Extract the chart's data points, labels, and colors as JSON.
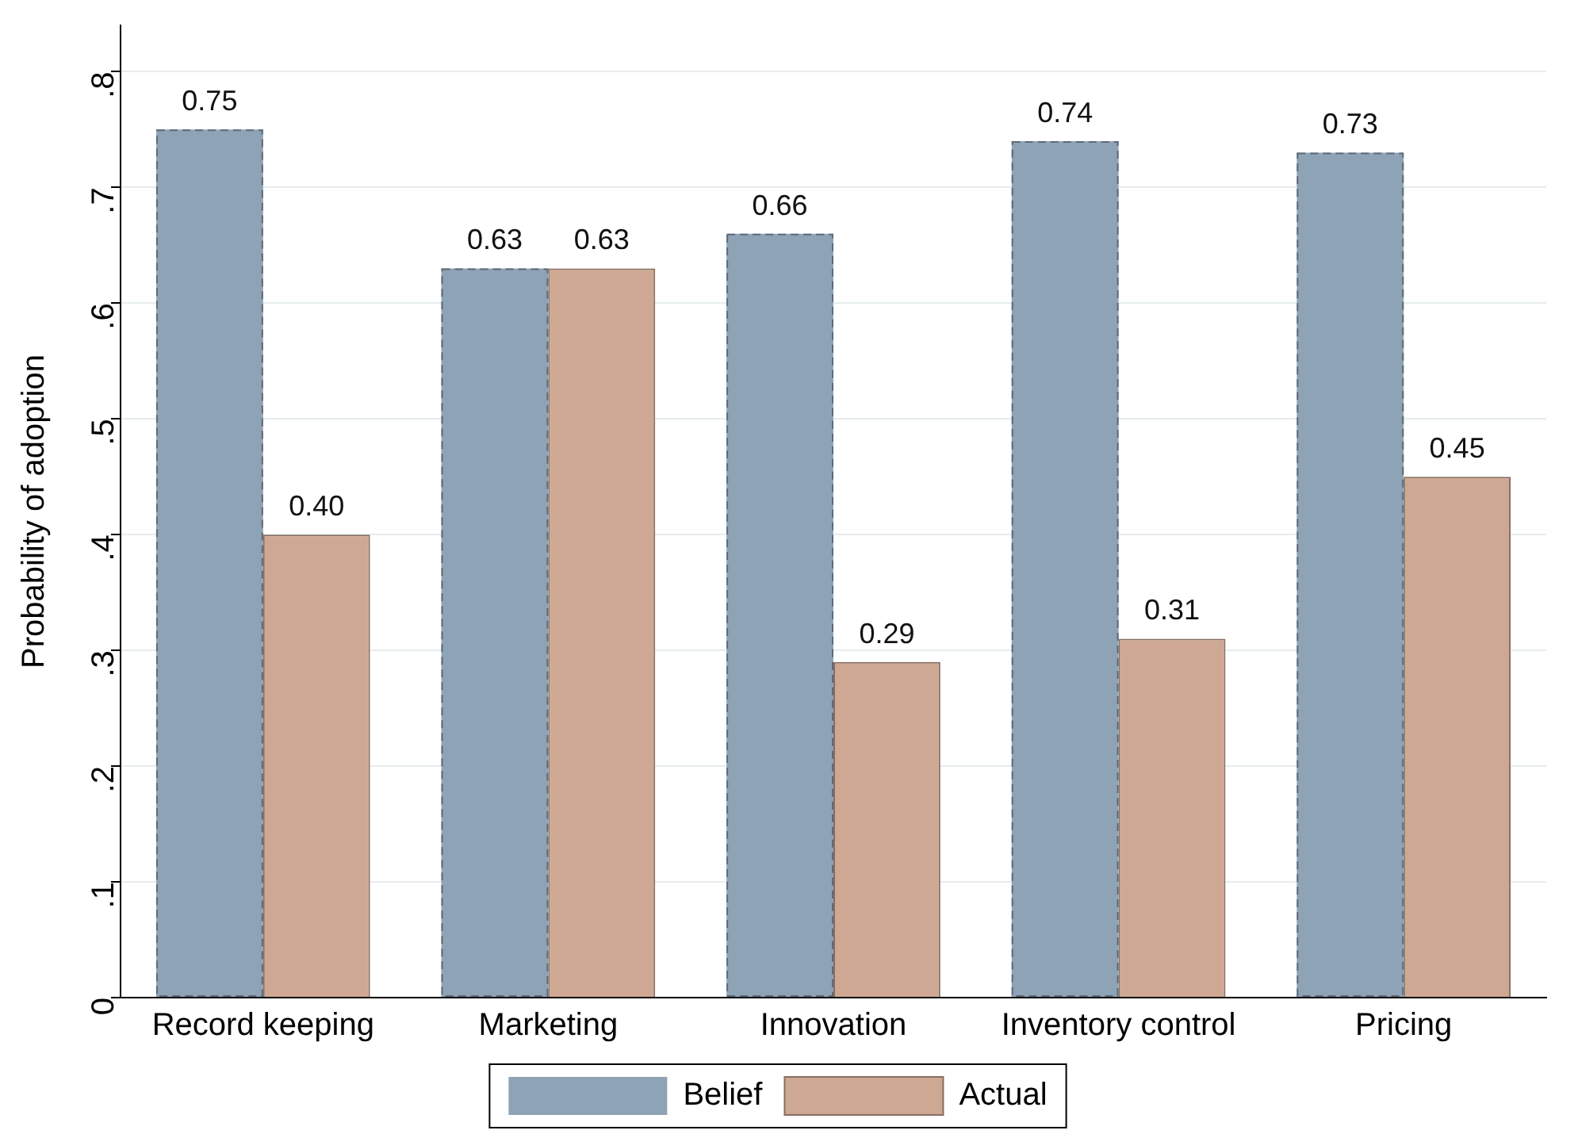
{
  "chart_data": {
    "type": "bar",
    "ylabel": "Probability of adoption",
    "categories": [
      "Record keeping",
      "Marketing",
      "Innovation",
      "Inventory control",
      "Pricing"
    ],
    "series": [
      {
        "name": "Belief",
        "color": "#8fa3b7",
        "line_style": "dashed",
        "values": [
          0.75,
          0.63,
          0.66,
          0.74,
          0.73
        ],
        "value_labels": [
          "0.75",
          "0.63",
          "0.66",
          "0.74",
          "0.73"
        ]
      },
      {
        "name": "Actual",
        "color": "#cfa893",
        "values": [
          0.4,
          0.63,
          0.29,
          0.31,
          0.45
        ],
        "value_labels": [
          "0.40",
          "0.63",
          "0.29",
          "0.31",
          "0.45"
        ]
      }
    ],
    "ylim": [
      0,
      0.84
    ],
    "yticks": [
      0,
      {
        "value": 0.1,
        "label": ".1"
      },
      {
        "value": 0.2,
        "label": ".2"
      },
      {
        "value": 0.3,
        "label": ".3"
      },
      {
        "value": 0.4,
        "label": ".4"
      },
      {
        "value": 0.5,
        "label": ".5"
      },
      {
        "value": 0.6,
        "label": ".6"
      },
      {
        "value": 0.7,
        "label": ".7"
      },
      {
        "value": 0.8,
        "label": ".8"
      }
    ],
    "grid": "y",
    "legend": "bottom"
  }
}
